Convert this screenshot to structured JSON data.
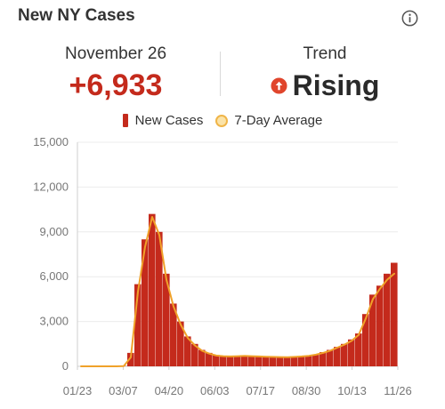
{
  "header": {
    "title": "New NY Cases",
    "info_icon": "info-circle-icon"
  },
  "summary": {
    "date_label": "November 26",
    "value": "+6,933",
    "trend_label": "Trend",
    "trend_value": "Rising",
    "trend_icon": "arrow-up-circle-icon"
  },
  "legend": {
    "new_cases": "New Cases",
    "avg": "7-Day Average"
  },
  "colors": {
    "bar": "#c42a1c",
    "avg_line": "#f0a22a",
    "avg_fill": "#fbe3a8",
    "value": "#c42a1c",
    "trend_icon": "#e0452c"
  },
  "chart_data": {
    "type": "bar",
    "title": "",
    "xlabel": "",
    "ylabel": "",
    "ylim": [
      0,
      15000
    ],
    "yticks": [
      "0",
      "3,000",
      "6,000",
      "9,000",
      "12,000",
      "15,000"
    ],
    "ytick_values": [
      0,
      3000,
      6000,
      9000,
      12000,
      15000
    ],
    "xticks": [
      "01/23",
      "03/07",
      "04/20",
      "06/03",
      "07/17",
      "08/30",
      "10/13",
      "11/26"
    ],
    "x_start": "01/23",
    "x_end": "11/26",
    "grid": true,
    "legend_position": "top",
    "series": [
      {
        "name": "New Cases",
        "type": "bar",
        "weekly_values": [
          0,
          0,
          0,
          0,
          0,
          0,
          20,
          900,
          5500,
          8500,
          10200,
          9000,
          6200,
          4200,
          3000,
          2000,
          1500,
          1100,
          900,
          750,
          700,
          680,
          700,
          720,
          700,
          680,
          660,
          650,
          640,
          630,
          650,
          680,
          720,
          800,
          950,
          1100,
          1300,
          1500,
          1800,
          2200,
          3500,
          4800,
          5400,
          6200,
          6933
        ]
      },
      {
        "name": "7-Day Average",
        "type": "line",
        "weekly_values": [
          0,
          0,
          0,
          0,
          0,
          0,
          10,
          600,
          5000,
          8000,
          10000,
          8800,
          5800,
          4000,
          2800,
          1900,
          1400,
          1050,
          850,
          720,
          680,
          660,
          680,
          700,
          680,
          660,
          640,
          630,
          620,
          610,
          630,
          660,
          700,
          780,
          900,
          1050,
          1250,
          1450,
          1700,
          2100,
          3200,
          4500,
          5200,
          5800,
          6200
        ]
      }
    ]
  }
}
